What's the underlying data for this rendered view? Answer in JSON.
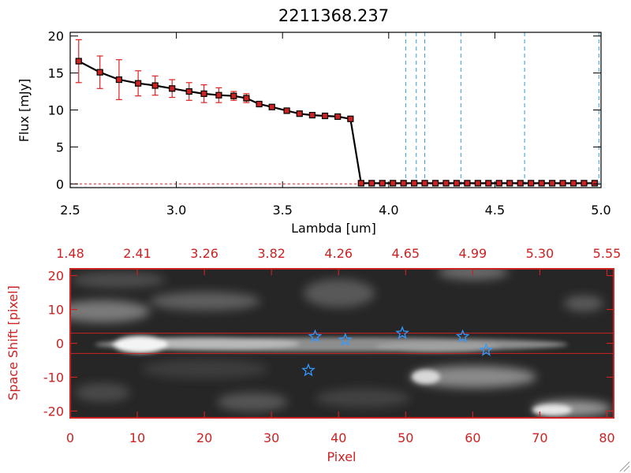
{
  "chart_data": [
    {
      "type": "line",
      "title": "2211368.237",
      "xlabel": "Lambda [um]",
      "ylabel": "Flux [mJy]",
      "xlim": [
        2.5,
        5.0
      ],
      "ylim": [
        -0.5,
        20.5
      ],
      "xticks": [
        "2.5",
        "3.0",
        "3.5",
        "4.0",
        "4.5",
        "5.0"
      ],
      "xtick_values": [
        2.5,
        3.0,
        3.5,
        4.0,
        4.5,
        5.0
      ],
      "yticks": [
        "0",
        "5",
        "10",
        "15",
        "20"
      ],
      "ytick_values": [
        0,
        5,
        10,
        15,
        20
      ],
      "series": [
        {
          "x": [
            2.54,
            2.64,
            2.73,
            2.82,
            2.9,
            2.98,
            3.06,
            3.13,
            3.2,
            3.27,
            3.33,
            3.39,
            3.45,
            3.52,
            3.58,
            3.64,
            3.7,
            3.76,
            3.82,
            3.87,
            3.92,
            3.97,
            4.02,
            4.07,
            4.12,
            4.17,
            4.22,
            4.27,
            4.32,
            4.37,
            4.42,
            4.47,
            4.52,
            4.57,
            4.62,
            4.67,
            4.72,
            4.77,
            4.82,
            4.87,
            4.92,
            4.97
          ],
          "y": [
            16.6,
            15.1,
            14.1,
            13.6,
            13.3,
            12.9,
            12.5,
            12.2,
            12.0,
            11.9,
            11.6,
            10.8,
            10.4,
            9.9,
            9.5,
            9.3,
            9.2,
            9.1,
            8.8,
            0.1,
            0.1,
            0.1,
            0.1,
            0.1,
            0.1,
            0.1,
            0.1,
            0.1,
            0.1,
            0.1,
            0.1,
            0.1,
            0.1,
            0.1,
            0.1,
            0.1,
            0.1,
            0.1,
            0.1,
            0.1,
            0.1,
            0.1
          ],
          "yerr": [
            2.9,
            2.2,
            2.7,
            1.7,
            1.3,
            1.2,
            1.2,
            1.2,
            1.0,
            0.6,
            0.6,
            0.0,
            0.0,
            0.0,
            0.0,
            0.0,
            0.0,
            0.0,
            0.0,
            0.0,
            0.0,
            0.0,
            0.0,
            0.0,
            0.0,
            0.0,
            0.0,
            0.0,
            0.0,
            0.0,
            0.0,
            0.0,
            0.0,
            0.0,
            0.0,
            0.0,
            0.0,
            0.0,
            0.0,
            0.0,
            0.0,
            0.0
          ]
        }
      ],
      "vlines": [
        4.08,
        4.13,
        4.17,
        4.34,
        4.64,
        4.99
      ],
      "colors": {
        "line": "#000000",
        "marker": "#cc2222",
        "errorbar": "#dd2222",
        "vline": "#3399dd",
        "zero": "#dd2222"
      }
    },
    {
      "type": "heatmap",
      "xlabel": "Pixel",
      "ylabel": "Space Shift [pixel]",
      "xlim": [
        0,
        81
      ],
      "ylim": [
        -22,
        22
      ],
      "xticks": [
        "0",
        "10",
        "20",
        "30",
        "40",
        "50",
        "60",
        "70",
        "80"
      ],
      "xtick_values": [
        0,
        10,
        20,
        30,
        40,
        50,
        60,
        70,
        80
      ],
      "top_xticks": [
        "1.48",
        "2.41",
        "3.26",
        "3.82",
        "4.26",
        "4.65",
        "4.99",
        "5.30",
        "5.55"
      ],
      "yticks": [
        "20",
        "10",
        "0",
        "-10",
        "-20"
      ],
      "ytick_values": [
        20,
        10,
        0,
        -10,
        -20
      ],
      "hlines": [
        3,
        -3
      ],
      "stars": [
        {
          "x": 36.5,
          "y": 2.0
        },
        {
          "x": 41.0,
          "y": 1.0
        },
        {
          "x": 49.5,
          "y": 3.0
        },
        {
          "x": 58.5,
          "y": 2.0
        },
        {
          "x": 62.0,
          "y": -2.0
        },
        {
          "x": 35.5,
          "y": -8.0
        }
      ],
      "colors": {
        "axis": "#cc2222",
        "star": "#3399ff",
        "hline": "#cc2222"
      }
    }
  ]
}
